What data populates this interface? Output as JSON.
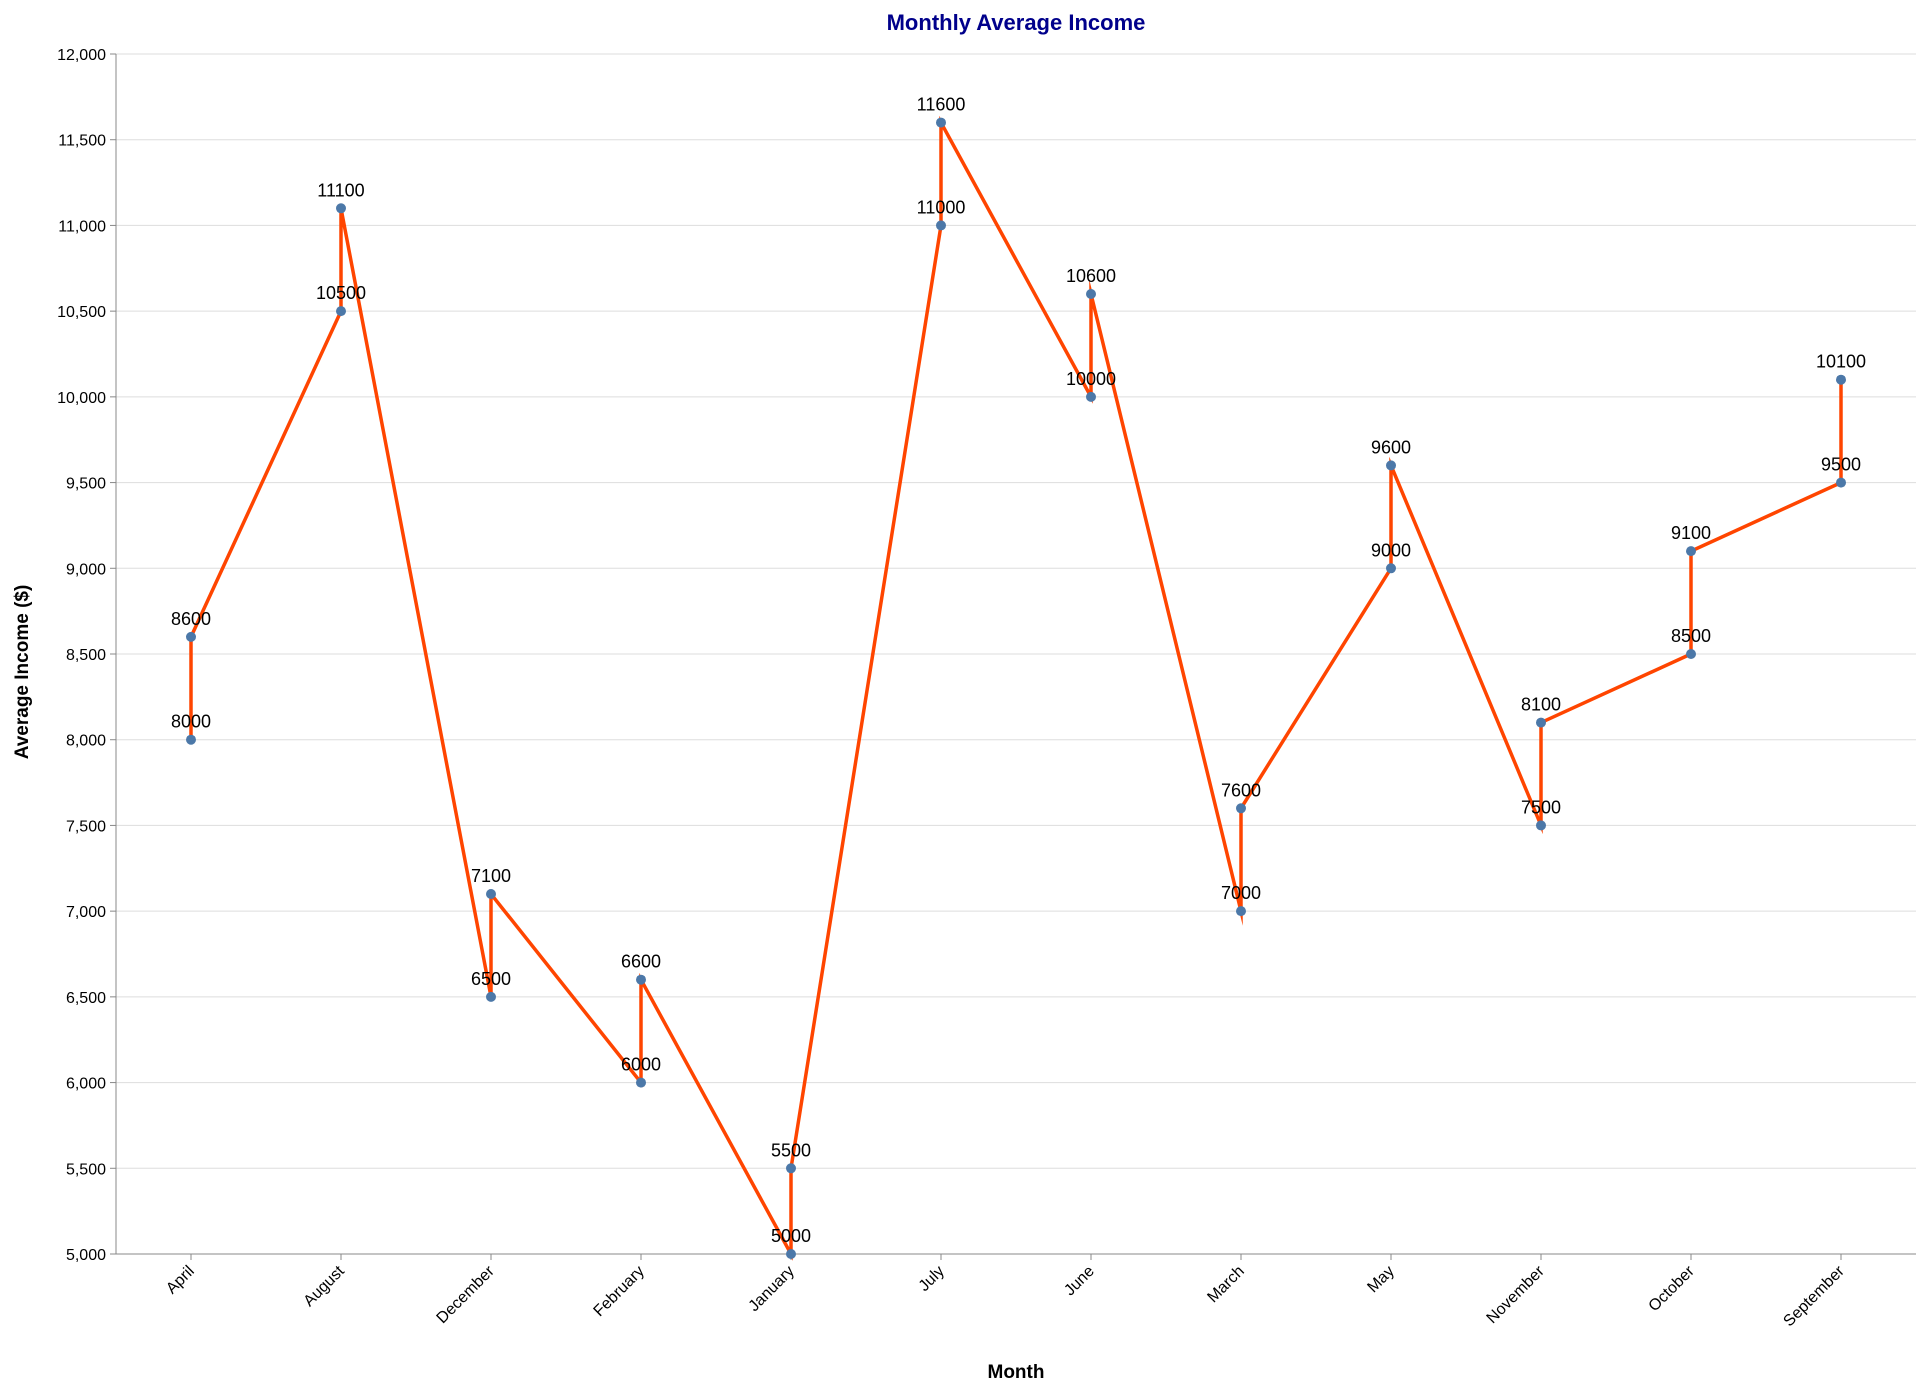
{
  "chart_data": {
    "type": "line",
    "title": "Monthly Average Income",
    "xlabel": "Month",
    "ylabel": "Average Income ($)",
    "ylim": [
      5000,
      12000
    ],
    "yticks": [
      5000,
      5500,
      6000,
      6500,
      7000,
      7500,
      8000,
      8500,
      9000,
      9500,
      10000,
      10500,
      11000,
      11500,
      12000
    ],
    "ytick_labels": [
      "5,000",
      "5,500",
      "6,000",
      "6,500",
      "7,000",
      "7,500",
      "8,000",
      "8,500",
      "9,000",
      "9,500",
      "10,000",
      "10,500",
      "11,000",
      "11,500",
      "12,000"
    ],
    "categories": [
      "April",
      "August",
      "December",
      "February",
      "January",
      "July",
      "June",
      "March",
      "May",
      "November",
      "October",
      "September"
    ],
    "points": [
      {
        "x": "April",
        "y": 8000
      },
      {
        "x": "April",
        "y": 8600
      },
      {
        "x": "August",
        "y": 10500
      },
      {
        "x": "August",
        "y": 11100
      },
      {
        "x": "December",
        "y": 6500
      },
      {
        "x": "December",
        "y": 7100
      },
      {
        "x": "February",
        "y": 6000
      },
      {
        "x": "February",
        "y": 6600
      },
      {
        "x": "January",
        "y": 5000
      },
      {
        "x": "January",
        "y": 5500
      },
      {
        "x": "July",
        "y": 11000
      },
      {
        "x": "July",
        "y": 11600
      },
      {
        "x": "June",
        "y": 10000
      },
      {
        "x": "June",
        "y": 10600
      },
      {
        "x": "March",
        "y": 7000
      },
      {
        "x": "March",
        "y": 7600
      },
      {
        "x": "May",
        "y": 9000
      },
      {
        "x": "May",
        "y": 9600
      },
      {
        "x": "November",
        "y": 7500
      },
      {
        "x": "November",
        "y": 8100
      },
      {
        "x": "October",
        "y": 8500
      },
      {
        "x": "October",
        "y": 9100
      },
      {
        "x": "September",
        "y": 9500
      },
      {
        "x": "September",
        "y": 10100
      }
    ],
    "line_order": [
      {
        "x": "April",
        "y": 8000
      },
      {
        "x": "April",
        "y": 8600
      },
      {
        "x": "August",
        "y": 10500
      },
      {
        "x": "August",
        "y": 11100
      },
      {
        "x": "December",
        "y": 6500
      },
      {
        "x": "December",
        "y": 7100
      },
      {
        "x": "February",
        "y": 6000
      },
      {
        "x": "February",
        "y": 6600
      },
      {
        "x": "January",
        "y": 5000
      },
      {
        "x": "January",
        "y": 5500
      },
      {
        "x": "July",
        "y": 11000
      },
      {
        "x": "July",
        "y": 11600
      },
      {
        "x": "June",
        "y": 10000
      },
      {
        "x": "June",
        "y": 10600
      },
      {
        "x": "March",
        "y": 7000
      },
      {
        "x": "March",
        "y": 7600
      },
      {
        "x": "May",
        "y": 9000
      },
      {
        "x": "May",
        "y": 9600
      },
      {
        "x": "November",
        "y": 7500
      },
      {
        "x": "November",
        "y": 8100
      },
      {
        "x": "October",
        "y": 8500
      },
      {
        "x": "October",
        "y": 9100
      },
      {
        "x": "September",
        "y": 9500
      },
      {
        "x": "September",
        "y": 10100
      }
    ],
    "grid": true,
    "colors": {
      "line": "#ff4500",
      "point": "#4c78a8",
      "title": "#00008b",
      "grid": "#dddddd",
      "axis": "#888888"
    }
  }
}
